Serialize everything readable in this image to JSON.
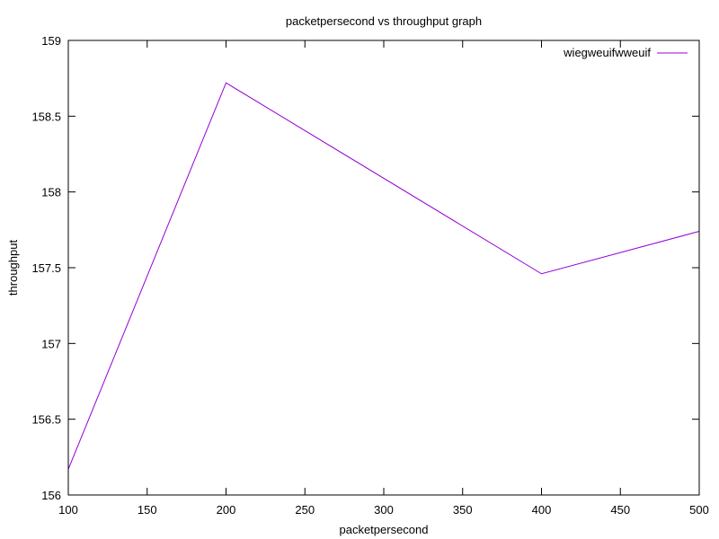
{
  "chart_data": {
    "type": "line",
    "title": "packetpersecond vs throughput graph",
    "xlabel": "packetpersecond",
    "ylabel": "throughput",
    "xlim": [
      100,
      500
    ],
    "ylim": [
      156,
      159
    ],
    "xticks": [
      {
        "value": 100,
        "label": "100"
      },
      {
        "value": 150,
        "label": "150"
      },
      {
        "value": 200,
        "label": "200"
      },
      {
        "value": 250,
        "label": "250"
      },
      {
        "value": 300,
        "label": "300"
      },
      {
        "value": 350,
        "label": "350"
      },
      {
        "value": 400,
        "label": "400"
      },
      {
        "value": 450,
        "label": "450"
      },
      {
        "value": 500,
        "label": "500"
      }
    ],
    "yticks": [
      {
        "value": 156,
        "label": "156"
      },
      {
        "value": 156.5,
        "label": "156.5"
      },
      {
        "value": 157,
        "label": "157"
      },
      {
        "value": 157.5,
        "label": "157.5"
      },
      {
        "value": 158,
        "label": "158"
      },
      {
        "value": 158.5,
        "label": "158.5"
      },
      {
        "value": 159,
        "label": "159"
      }
    ],
    "grid": false,
    "legend_position": "top-right",
    "series": [
      {
        "name": "wiegweuifwweuif",
        "color": "#9400d3",
        "x": [
          100,
          200,
          400,
          500
        ],
        "y": [
          156.17,
          158.72,
          157.46,
          157.74
        ]
      }
    ]
  }
}
